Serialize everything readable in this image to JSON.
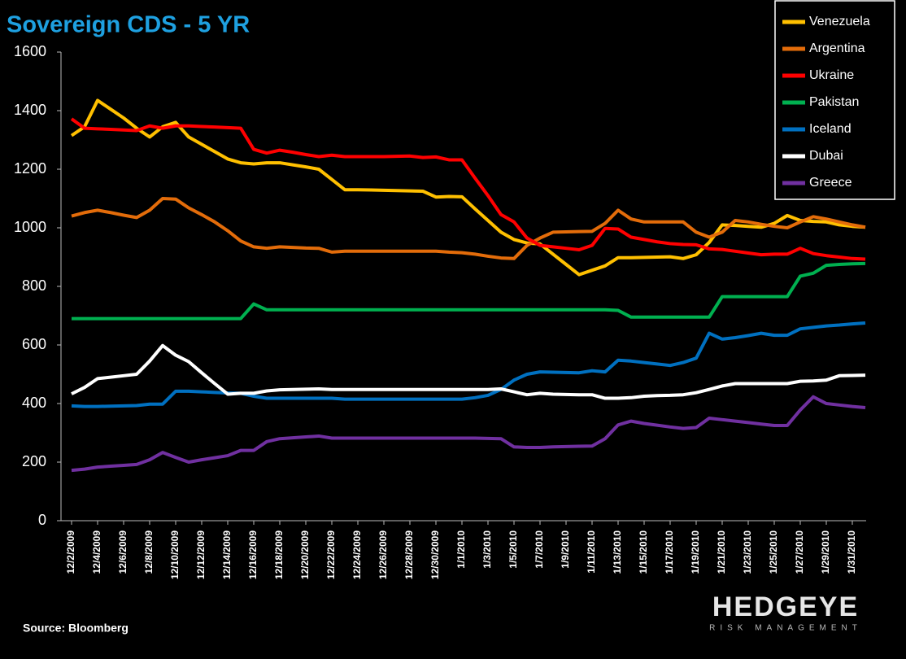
{
  "chart_data": {
    "type": "line",
    "title": "Sovereign CDS - 5 YR",
    "categories": [
      "12/2/2009",
      null,
      "12/4/2009",
      null,
      "12/6/2009",
      null,
      "12/8/2009",
      null,
      "12/10/2009",
      null,
      "12/12/2009",
      null,
      "12/14/2009",
      null,
      "12/16/2009",
      null,
      "12/18/2009",
      null,
      "12/20/2009",
      null,
      "12/22/2009",
      null,
      "12/24/2009",
      null,
      "12/26/2009",
      null,
      "12/28/2009",
      null,
      "12/30/2009",
      null,
      "1/1/2010",
      null,
      "1/3/2010",
      null,
      "1/5/2010",
      null,
      "1/7/2010",
      null,
      "1/9/2010",
      null,
      "1/11/2010",
      null,
      "1/13/2010",
      null,
      "1/15/2010",
      null,
      "1/17/2010",
      null,
      "1/19/2010",
      null,
      "1/21/2010",
      null,
      "1/23/2010",
      null,
      "1/25/2010",
      null,
      "1/27/2010",
      null,
      "1/29/2010",
      null,
      "1/31/2010",
      null
    ],
    "series": [
      {
        "name": "Venezuela",
        "color": "#ffc000",
        "values": [
          1315,
          1345,
          1435,
          1405,
          1375,
          1340,
          1310,
          1345,
          1360,
          1310,
          1285,
          1260,
          1235,
          1222,
          1218,
          1222,
          1222,
          1215,
          1208,
          1200,
          1165,
          1130,
          1130,
          1129,
          1128,
          1127,
          1126,
          1125,
          1105,
          1107,
          1106,
          1065,
          1025,
          985,
          960,
          948,
          945,
          910,
          875,
          840,
          855,
          870,
          898,
          898,
          899,
          900,
          901,
          895,
          908,
          950,
          1010,
          1008,
          1005,
          1002,
          1015,
          1042,
          1025,
          1022,
          1020,
          1010,
          1005,
          1002
        ]
      },
      {
        "name": "Argentina",
        "color": "#e36c0a",
        "values": [
          1040,
          1052,
          1060,
          1052,
          1043,
          1035,
          1060,
          1100,
          1098,
          1068,
          1045,
          1020,
          990,
          955,
          935,
          930,
          935,
          933,
          931,
          930,
          917,
          920,
          920,
          920,
          920,
          920,
          920,
          920,
          920,
          917,
          915,
          910,
          903,
          897,
          895,
          940,
          965,
          985,
          986,
          987,
          988,
          1015,
          1060,
          1030,
          1020,
          1020,
          1020,
          1020,
          985,
          968,
          985,
          1025,
          1020,
          1012,
          1005,
          1000,
          1020,
          1038,
          1030,
          1020,
          1010,
          1002
        ]
      },
      {
        "name": "Ukraine",
        "color": "#ff0000",
        "values": [
          1372,
          1340,
          1338,
          1336,
          1334,
          1332,
          1348,
          1340,
          1348,
          1348,
          1346,
          1344,
          1342,
          1340,
          1268,
          1255,
          1265,
          1258,
          1250,
          1243,
          1248,
          1243,
          1243,
          1243,
          1243,
          1244,
          1245,
          1240,
          1242,
          1232,
          1232,
          1170,
          1110,
          1045,
          1020,
          965,
          940,
          935,
          930,
          925,
          940,
          998,
          996,
          968,
          960,
          952,
          946,
          943,
          942,
          928,
          926,
          920,
          914,
          908,
          910,
          910,
          930,
          912,
          905,
          900,
          895,
          893
        ]
      },
      {
        "name": "Pakistan",
        "color": "#00b050",
        "values": [
          690,
          690,
          690,
          690,
          690,
          690,
          690,
          690,
          690,
          690,
          690,
          690,
          690,
          690,
          740,
          720,
          720,
          720,
          720,
          720,
          720,
          720,
          720,
          720,
          720,
          720,
          720,
          720,
          720,
          720,
          720,
          720,
          720,
          720,
          720,
          720,
          720,
          720,
          720,
          720,
          720,
          720,
          718,
          695,
          695,
          695,
          695,
          695,
          695,
          695,
          765,
          765,
          765,
          765,
          765,
          765,
          835,
          845,
          872,
          875,
          877,
          878
        ]
      },
      {
        "name": "Iceland",
        "color": "#0070c0",
        "values": [
          392,
          390,
          390,
          391,
          392,
          393,
          398,
          398,
          442,
          442,
          440,
          438,
          436,
          435,
          425,
          418,
          418,
          418,
          418,
          418,
          418,
          415,
          415,
          415,
          415,
          415,
          415,
          415,
          415,
          415,
          415,
          420,
          428,
          448,
          480,
          500,
          508,
          507,
          506,
          505,
          512,
          508,
          548,
          545,
          540,
          535,
          530,
          540,
          555,
          640,
          620,
          625,
          632,
          640,
          633,
          633,
          655,
          660,
          665,
          668,
          672,
          675
        ]
      },
      {
        "name": "Dubai",
        "color": "#ffffff",
        "values": [
          433,
          455,
          485,
          490,
          495,
          500,
          545,
          598,
          565,
          543,
          505,
          468,
          432,
          435,
          435,
          443,
          447,
          448,
          449,
          450,
          448,
          448,
          448,
          448,
          448,
          448,
          448,
          448,
          448,
          448,
          448,
          448,
          448,
          450,
          440,
          430,
          435,
          432,
          431,
          430,
          430,
          418,
          418,
          420,
          425,
          427,
          428,
          430,
          437,
          448,
          460,
          468,
          468,
          468,
          468,
          468,
          476,
          477,
          480,
          495,
          496,
          497
        ]
      },
      {
        "name": "Greece",
        "color": "#7030a0",
        "values": [
          172,
          176,
          183,
          186,
          189,
          192,
          208,
          233,
          216,
          200,
          208,
          215,
          222,
          240,
          240,
          270,
          280,
          283,
          286,
          289,
          282,
          282,
          282,
          282,
          282,
          282,
          282,
          282,
          282,
          282,
          282,
          282,
          281,
          280,
          252,
          250,
          250,
          252,
          253,
          254,
          255,
          280,
          327,
          340,
          332,
          326,
          320,
          315,
          318,
          350,
          345,
          340,
          335,
          330,
          325,
          325,
          378,
          423,
          400,
          395,
          390,
          386
        ]
      }
    ],
    "ylim": [
      0,
      1600
    ],
    "yticks": [
      0,
      200,
      400,
      600,
      800,
      1000,
      1200,
      1400,
      1600
    ],
    "grid": false,
    "legend": "top-right",
    "source": "Source: Bloomberg",
    "logo": {
      "name": "HEDGEYE",
      "tagline": "RISK MANAGEMENT"
    }
  }
}
